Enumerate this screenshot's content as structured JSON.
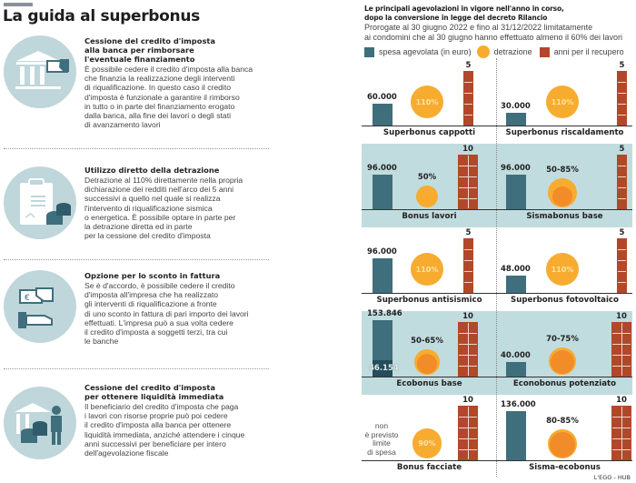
{
  "left": {
    "title": "La guida al superbonus",
    "sections": [
      {
        "icon": "bank-hand-card-icon",
        "title": "Cessione del credito d'imposta alla banca per rimborsare l'eventuale finanziamento",
        "title_lines": [
          "Cessione del credito d'imposta",
          "alla banca per rimborsare",
          "l'eventuale finanziamento"
        ],
        "body_lines": [
          "È possibile cedere il credito d'imposta alla banca",
          "che finanzia la realizzazione degli interventi",
          "di riqualificazione. In questo caso il credito",
          "d'imposta è funzionale a garantire il rimborso",
          "in tutto o in parte del finanziamento erogato",
          "dalla banca, alla fine dei lavori o degli stati",
          "di avanzamento lavori"
        ]
      },
      {
        "icon": "clipboard-money-icon",
        "title_lines": [
          "Utilizzo diretto della detrazione"
        ],
        "body_lines": [
          "Detrazione al 110% direttamente nella propria",
          "dichiarazione dei redditi nell'arco dei 5 anni",
          "successivi a quello nel quale si realizza",
          "l'intervento di riqualificazione sismica",
          "o energetica. È possibile optare in parte per",
          "la detrazione diretta ed in parte",
          "per la cessione del credito d'imposta"
        ]
      },
      {
        "icon": "invoice-discount-hands-icon",
        "title_lines": [
          "Opzione per lo sconto in fattura"
        ],
        "body_lines": [
          "Se è d'accordo, è possibile cedere il credito",
          "d'imposta all'impresa che ha realizzato",
          "gli interventi di riqualificazione a fronte",
          "di uno sconto in fattura di pari importo dei lavori",
          "effettuati. L'impresa può a sua volta cedere",
          "il credito d'imposta a soggetti terzi, tra cui",
          "le banche"
        ]
      },
      {
        "icon": "bank-person-money-icon",
        "title_lines": [
          "Cessione del credito d'imposta",
          "per ottenere liquidità immediata"
        ],
        "body_lines": [
          "Il beneficiario del credito d'imposta che paga",
          "i lavori con risorse proprie può poi cedere",
          "il credito d'imposta alla banca per ottenere",
          "liquidità immediata, anziché attendere i cinque",
          "anni successivi per beneficiare per intero",
          "dell'agevolazione fiscale"
        ]
      }
    ]
  },
  "right": {
    "title_lines": [
      "Le principali agevolazioni in vigore nell'anno in corso,",
      "dopo la conversione in legge del decreto Rilancio"
    ],
    "subtitle_lines": [
      "Prorogate al 30 giugno 2022 e fino al 31/12/2022 limitatamente",
      "ai condomini che al 30 giugno hanno effettuato almeno il 60% dei lavori"
    ],
    "legend": [
      {
        "label": "spesa agevolata (in euro)",
        "shape": "square",
        "color": "#3f6e7d"
      },
      {
        "label": "detrazione",
        "shape": "circle",
        "color": "#f7ac2f"
      },
      {
        "label": "anni per il recupero",
        "shape": "square",
        "color": "#b1482a"
      }
    ],
    "credit": "L'EGO - HUB"
  },
  "chart_data": {
    "type": "bar",
    "title": "Le principali agevolazioni in vigore nell'anno in corso, dopo la conversione in legge del decreto Rilancio",
    "subtitle": "Prorogate al 30 giugno 2022 e fino al 31/12/2022 limitatamente ai condomini che al 30 giugno hanno effettuato almeno il 60% dei lavori",
    "legend": [
      "spesa agevolata (in euro)",
      "detrazione",
      "anni per il recupero"
    ],
    "legend_position": "top",
    "colors": {
      "spesa": "#3f6e7d",
      "spesa_dark": "#234e5b",
      "detrazione": "#f7ac2f",
      "detrazione_max": "#f28c28",
      "anni": "#b1482a",
      "panel_shade": "#c1dcdf"
    },
    "categories": [
      "Superbonus cappotti",
      "Superbonus riscaldamento",
      "Bonus lavori",
      "Sismabonus base",
      "Superbonus antisismico",
      "Superbonus fotovoltaico",
      "Ecobonus base",
      "Econobonus potenziato",
      "Bonus facciate",
      "Sisma-ecobonus"
    ],
    "items": [
      {
        "name": "Superbonus cappotti",
        "spesa": 60000,
        "spesa_label": "60.000",
        "detrazione_label": "110%",
        "detrazione_min": 110,
        "detrazione_max": 110,
        "anni": 5,
        "shaded": false
      },
      {
        "name": "Superbonus riscaldamento",
        "spesa": 30000,
        "spesa_label": "30.000",
        "detrazione_label": "110%",
        "detrazione_min": 110,
        "detrazione_max": 110,
        "anni": 5,
        "shaded": false
      },
      {
        "name": "Bonus lavori",
        "spesa": 96000,
        "spesa_label": "96.000",
        "detrazione_label": "50%",
        "detrazione_min": 50,
        "detrazione_max": 50,
        "anni": 10,
        "shaded": true
      },
      {
        "name": "Sismabonus base",
        "spesa": 96000,
        "spesa_label": "96.000",
        "detrazione_label": "50-85%",
        "detrazione_min": 50,
        "detrazione_max": 85,
        "anni": 5,
        "shaded": true
      },
      {
        "name": "Superbonus antisismico",
        "spesa": 96000,
        "spesa_label": "96.000",
        "detrazione_label": "110%",
        "detrazione_min": 110,
        "detrazione_max": 110,
        "anni": 5,
        "shaded": false
      },
      {
        "name": "Superbonus fotovoltaico",
        "spesa": 48000,
        "spesa_label": "48.000",
        "detrazione_label": "110%",
        "detrazione_min": 110,
        "detrazione_max": 110,
        "anni": 5,
        "shaded": false
      },
      {
        "name": "Ecobonus base",
        "spesa": 153846,
        "spesa_label": "153.846",
        "spesa_min": 46154,
        "spesa_min_label": "46.154",
        "detrazione_label": "50-65%",
        "detrazione_min": 50,
        "detrazione_max": 65,
        "anni": 10,
        "shaded": true
      },
      {
        "name": "Econobonus potenziato",
        "spesa": 40000,
        "spesa_label": "40.000",
        "detrazione_label": "70-75%",
        "detrazione_min": 70,
        "detrazione_max": 75,
        "anni": 10,
        "shaded": true
      },
      {
        "name": "Bonus facciate",
        "spesa": null,
        "spesa_note_lines": [
          "non",
          "è previsto",
          "limite",
          "di spesa"
        ],
        "detrazione_label": "90%",
        "detrazione_min": 90,
        "detrazione_max": 90,
        "anni": 10,
        "shaded": false
      },
      {
        "name": "Sisma-ecobonus",
        "spesa": 136000,
        "spesa_label": "136.000",
        "detrazione_label": "80-85%",
        "detrazione_min": 80,
        "detrazione_max": 85,
        "anni": 10,
        "shaded": false
      }
    ]
  }
}
